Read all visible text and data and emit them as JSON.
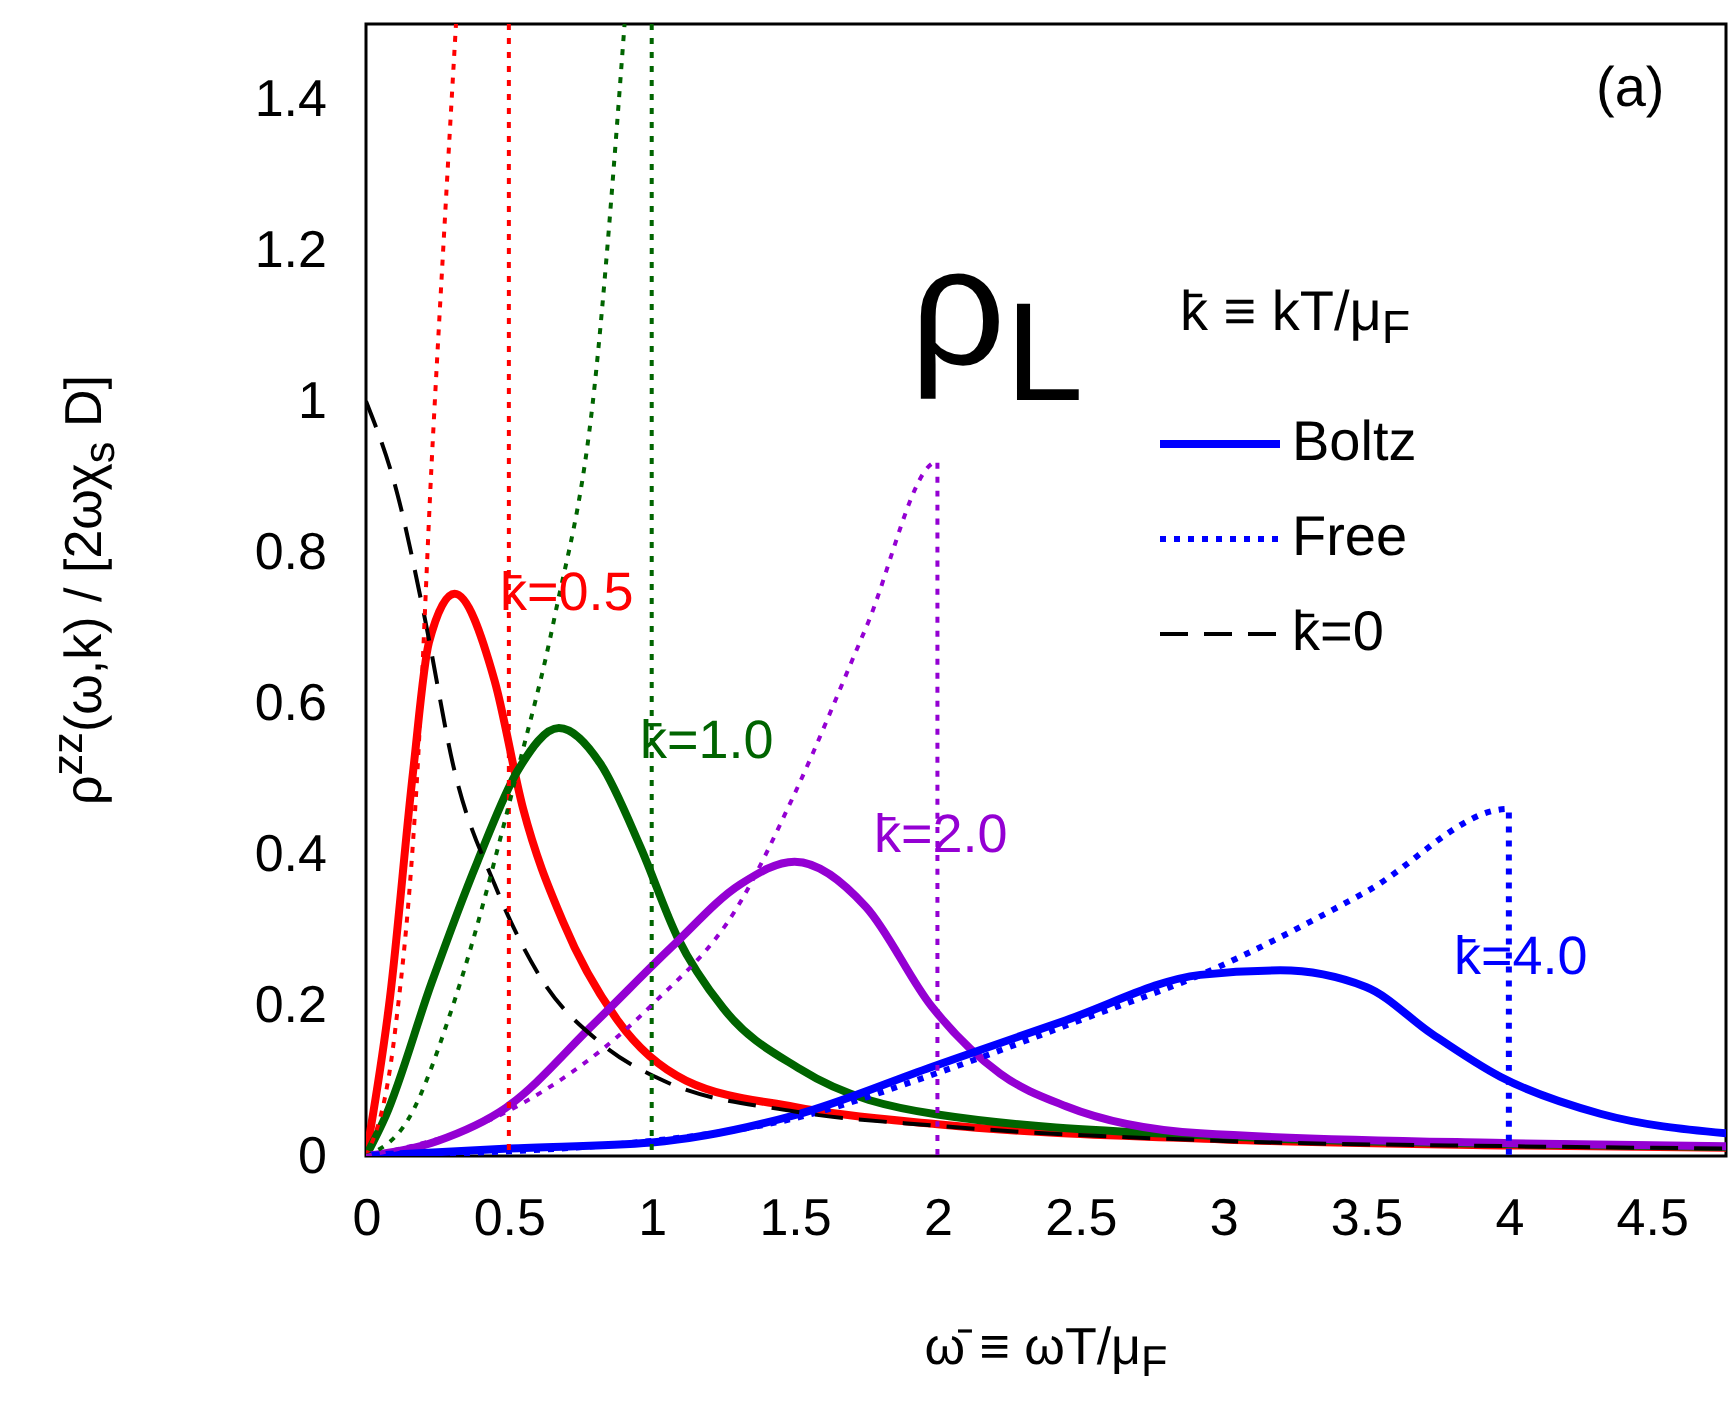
{
  "chart_data": {
    "type": "line",
    "xlabel": "ω̄ ≡ ωT/μ$_{F}$",
    "ylabel": "ρ$^{zz}$(ω,k) / [2ωχ$_{s}$ D]",
    "xlim": [
      0,
      4.76
    ],
    "ylim": [
      0,
      1.5
    ],
    "xticks": [
      0,
      0.5,
      1,
      1.5,
      2,
      2.5,
      3,
      3.5,
      4,
      4.5
    ],
    "yticks": [
      0,
      0.2,
      0.4,
      0.6,
      0.8,
      1,
      1.2,
      1.4
    ],
    "grid": false,
    "legend": "top right",
    "marker": "none",
    "annotations": [
      "k̄=0.5",
      "k̄=1.0",
      "k̄=2.0",
      "k̄=4.0",
      "ρ$_{L}$",
      "k̄ ≡ kT/μ$_{F}$",
      "(a)"
    ],
    "series": [
      {
        "color": "#ff0000",
        "line_style": "solid",
        "x": [
          0,
          0.084,
          0.165,
          0.22,
          0.31,
          0.45,
          0.55,
          0.69,
          0.88,
          1.12,
          1.5,
          2,
          3,
          4,
          4.76
        ],
        "values": [
          0,
          0.21,
          0.51,
          0.68,
          0.745,
          0.63,
          0.46,
          0.31,
          0.18,
          0.1,
          0.065,
          0.042,
          0.022,
          0.014,
          0.011
        ]
      },
      {
        "color": "#006400",
        "line_style": "solid",
        "x": [
          0,
          0.07,
          0.23,
          0.39,
          0.53,
          0.675,
          0.82,
          0.96,
          1.09,
          1.25,
          1.52,
          2,
          3,
          4,
          4.76
        ],
        "values": [
          0,
          0.054,
          0.23,
          0.39,
          0.51,
          0.567,
          0.52,
          0.41,
          0.29,
          0.196,
          0.115,
          0.055,
          0.026,
          0.016,
          0.012
        ]
      },
      {
        "color": "#9400d3",
        "line_style": "solid",
        "x": [
          0,
          0.25,
          0.49,
          0.8,
          1.07,
          1.31,
          1.5,
          1.75,
          1.98,
          2.22,
          2.45,
          2.92,
          4,
          4.76
        ],
        "values": [
          0,
          0.02,
          0.064,
          0.176,
          0.277,
          0.36,
          0.39,
          0.33,
          0.198,
          0.109,
          0.066,
          0.03,
          0.017,
          0.013
        ]
      },
      {
        "name": "Boltz",
        "color": "#0000ff",
        "line_style": "solid",
        "x": [
          0,
          0.5,
          1,
          1.5,
          1.98,
          2.45,
          2.92,
          3.2,
          3.5,
          3.73,
          3.97,
          4.32,
          4.76
        ],
        "values": [
          0,
          0.01,
          0.018,
          0.054,
          0.118,
          0.18,
          0.24,
          0.246,
          0.224,
          0.162,
          0.105,
          0.056,
          0.03
        ]
      },
      {
        "name": "Free",
        "color": "#0000ff",
        "line_style": "dotted",
        "x": [
          0,
          1,
          1.5,
          2,
          2.5,
          2.92,
          3.5,
          4,
          4
        ],
        "values": [
          0,
          0.02,
          0.05,
          0.11,
          0.18,
          0.24,
          0.35,
          0.46,
          0
        ]
      },
      {
        "name": "k̄=0",
        "color": "#000000",
        "line_style": "dashed",
        "x": [
          0,
          0.11,
          0.205,
          0.31,
          0.45,
          0.61,
          0.82,
          1.04,
          1.5,
          2,
          3,
          4,
          4.76
        ],
        "values": [
          1,
          0.877,
          0.714,
          0.51,
          0.36,
          0.237,
          0.15,
          0.1,
          0.059,
          0.04,
          0.02,
          0.013,
          0.01
        ]
      },
      {
        "color": "#ff0000",
        "line_style": "dotted",
        "x": [
          0,
          0.1,
          0.18,
          0.23,
          0.27,
          0.315
        ],
        "values": [
          0,
          0.16,
          0.51,
          0.92,
          1.2,
          1.5
        ]
      },
      {
        "color": "#ff0000",
        "line_style": "dotted",
        "x": [
          0.5,
          0.5
        ],
        "values": [
          1.5,
          0
        ]
      },
      {
        "color": "#006400",
        "line_style": "dotted",
        "x": [
          0,
          0.15,
          0.31,
          0.53,
          0.66,
          0.8,
          0.905
        ],
        "values": [
          0,
          0.05,
          0.206,
          0.51,
          0.714,
          1.02,
          1.5
        ]
      },
      {
        "color": "#006400",
        "line_style": "dotted",
        "x": [
          1,
          1
        ],
        "values": [
          1.5,
          0
        ]
      },
      {
        "color": "#9400d3",
        "line_style": "dotted",
        "x": [
          0,
          0.5,
          1,
          1.3,
          1.5,
          1.75,
          2,
          2
        ],
        "values": [
          0,
          0.06,
          0.2,
          0.33,
          0.48,
          0.7,
          0.92,
          0
        ]
      }
    ]
  }
}
